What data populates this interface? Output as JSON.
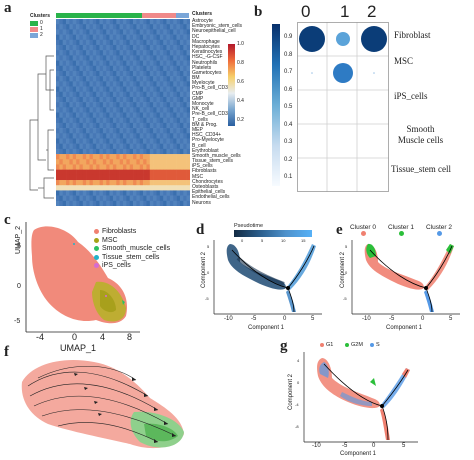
{
  "panels": {
    "a": "a",
    "b": "b",
    "c": "c",
    "d": "d",
    "e": "e",
    "f": "f",
    "g": "g"
  },
  "panel_a": {
    "clusters_legend_title": "Clusters",
    "cluster_ids": [
      "0",
      "1",
      "2"
    ],
    "cluster_colors": [
      "#29b34a",
      "#f08a8a",
      "#7aa6d8"
    ],
    "row_title": "Clusters",
    "scale_ticks": [
      "1.0",
      "0.8",
      "0.6",
      "0.4",
      "0.2"
    ],
    "cell_types": [
      "Astrocyte",
      "Embryonic_stem_cells",
      "Neuroepithelial_cell",
      "DC",
      "Macrophage",
      "Hepatocytes",
      "Keratinocytes",
      "HSC_-G-CSF",
      "Neutrophils",
      "Platelets",
      "Gametocytes",
      "BM",
      "Myelocyte",
      "Pro-B_cell_CD34+",
      "CMP",
      "GMP",
      "Monocyte",
      "NK_cell",
      "Pre-B_cell_CD34-",
      "T_cells",
      "BM & Prog.",
      "MEP",
      "HSC_CD34+",
      "Pro-Myelocyte",
      "B_cell",
      "Erythroblast",
      "Smooth_muscle_cells",
      "Tissue_stem_cells",
      "iPS_cells",
      "Fibroblasts",
      "MSC",
      "Chondrocytes",
      "Osteoblasts",
      "Epithelial_cells",
      "Endothelial_cells",
      "Neurons"
    ]
  },
  "panel_b": {
    "columns": [
      "0",
      "1",
      "2"
    ],
    "rows": [
      "Fibroblast",
      "MSC",
      "iPS_cells",
      "Smooth Muscle cells",
      "Tissue_stem cell"
    ],
    "color_ticks": [
      "0.9",
      "0.8",
      "0.7",
      "0.6",
      "0.5",
      "0.4",
      "0.3",
      "0.2",
      "0.1"
    ]
  },
  "panel_c": {
    "xlabel": "UMAP_1",
    "ylabel": "UMAP_2",
    "xticks": [
      "-4",
      "0",
      "4",
      "8"
    ],
    "yticks": [
      "5",
      "0",
      "-5"
    ],
    "legend": [
      {
        "label": "Fibroblasts",
        "color": "#f08070"
      },
      {
        "label": "MSC",
        "color": "#a3a316"
      },
      {
        "label": "Smooth_muscle_cells",
        "color": "#2bbf62"
      },
      {
        "label": "Tissue_stem_cells",
        "color": "#22b3c9"
      },
      {
        "label": "iPS_cells",
        "color": "#d66bd1"
      }
    ]
  },
  "panel_d": {
    "legend_title": "Pseudotime",
    "scale_ticks": [
      "0",
      "5",
      "10",
      "15"
    ],
    "xlabel": "Component 1",
    "ylabel": "Component 2",
    "xticks": [
      "-10",
      "-5",
      "0",
      "5"
    ],
    "yticks": [
      "5",
      "0",
      "-5"
    ]
  },
  "panel_e": {
    "legend": [
      {
        "label": "Cluster 0",
        "color": "#f08070"
      },
      {
        "label": "Cluster 1",
        "color": "#2bbf3a"
      },
      {
        "label": "Cluster 2",
        "color": "#5599e6"
      }
    ],
    "xlabel": "Component 1",
    "ylabel": "Component 2",
    "xticks": [
      "-10",
      "-5",
      "0",
      "5"
    ],
    "yticks": [
      "5",
      "0",
      "-5"
    ]
  },
  "panel_g": {
    "legend": [
      {
        "label": "G1",
        "color": "#f08070"
      },
      {
        "label": "G2M",
        "color": "#2bbf3a"
      },
      {
        "label": "S",
        "color": "#5599e6"
      }
    ],
    "xlabel": "Component 1",
    "ylabel": "Component 2",
    "xticks": [
      "-10",
      "-5",
      "0",
      "5"
    ],
    "yticks": [
      "4",
      "0",
      "-4",
      "-8"
    ]
  }
}
